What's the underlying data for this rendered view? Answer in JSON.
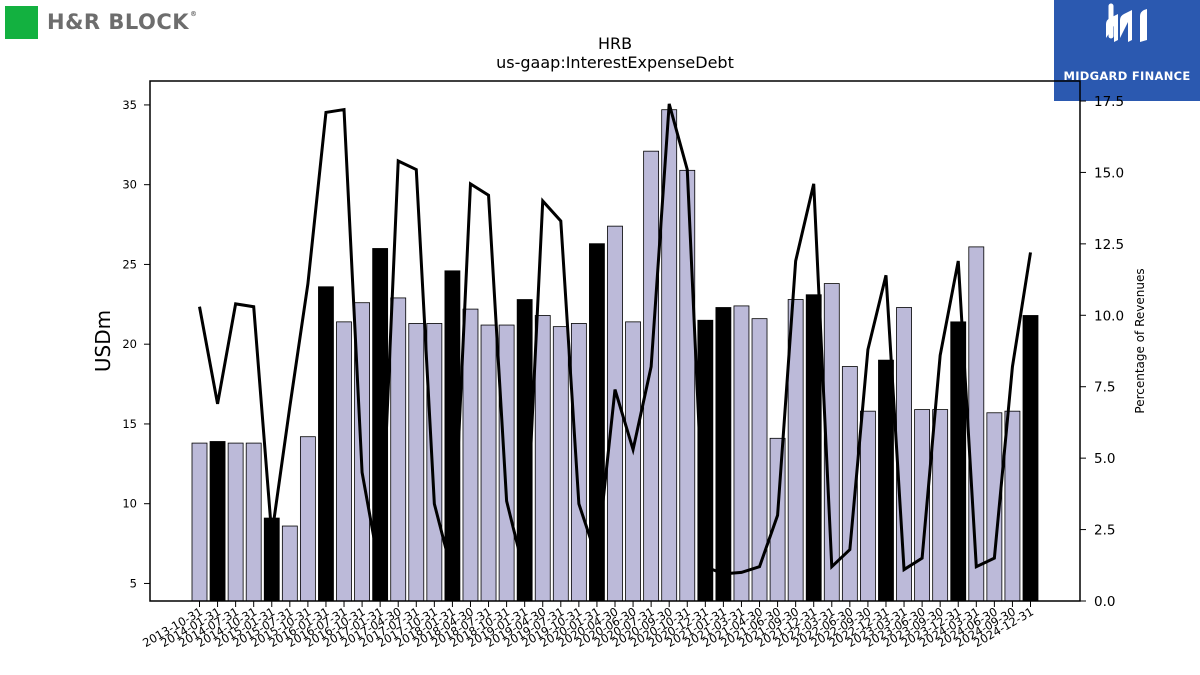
{
  "brand": {
    "name": "H&R BLOCK",
    "trademark": "®",
    "color": "#13b140"
  },
  "watermark": {
    "name": "MIDGARD FINANCE",
    "bg_color": "#2b59b0"
  },
  "chart_data": {
    "type": "bar",
    "title": "HRB",
    "subtitle": "us-gaap:InterestExpenseDebt",
    "ylabel": "USDm",
    "y2label": "Percentage of Revenues",
    "ylim": [
      3.9,
      36.5
    ],
    "y2lim": [
      0,
      18.2
    ],
    "yticks": [
      5,
      10,
      15,
      20,
      25,
      30,
      35
    ],
    "y2ticks": [
      0.0,
      2.5,
      5.0,
      7.5,
      10.0,
      12.5,
      15.0,
      17.5
    ],
    "categories": [
      "2013-10-31",
      "2014-01-31",
      "2014-07-31",
      "2014-10-31",
      "2015-01-31",
      "2015-07-31",
      "2015-10-31",
      "2016-01-31",
      "2016-07-31",
      "2016-10-31",
      "2017-01-31",
      "2017-04-30",
      "2017-07-31",
      "2017-10-31",
      "2018-01-31",
      "2018-04-30",
      "2018-07-31",
      "2018-10-31",
      "2019-01-31",
      "2019-04-30",
      "2019-07-31",
      "2019-10-31",
      "2020-01-31",
      "2020-04-30",
      "2020-06-30",
      "2020-07-31",
      "2020-09-30",
      "2020-10-31",
      "2020-12-31",
      "2021-01-31",
      "2021-03-31",
      "2021-04-30",
      "2021-06-30",
      "2021-09-30",
      "2021-12-31",
      "2022-03-31",
      "2022-06-30",
      "2022-09-30",
      "2022-12-31",
      "2023-03-31",
      "2023-06-30",
      "2023-09-30",
      "2023-12-31",
      "2024-03-31",
      "2024-06-30",
      "2024-09-30",
      "2024-12-31"
    ],
    "series": [
      {
        "name": "",
        "kind": "bar",
        "axis": "left",
        "values": [
          13.8,
          13.9,
          13.8,
          13.8,
          9.1,
          8.6,
          14.2,
          23.6,
          21.4,
          22.6,
          26.0,
          22.9,
          21.3,
          21.3,
          24.6,
          22.2,
          21.2,
          21.2,
          22.8,
          21.8,
          21.1,
          21.3,
          26.3,
          27.4,
          21.4,
          32.1,
          34.7,
          30.9,
          21.5,
          22.3,
          22.4,
          21.6,
          14.1,
          22.8,
          23.1,
          23.8,
          18.6,
          15.8,
          19.0,
          22.3,
          15.9,
          15.9,
          21.4,
          26.1,
          15.7,
          15.8,
          21.8
        ],
        "highlight": [
          false,
          true,
          false,
          false,
          true,
          false,
          false,
          true,
          false,
          false,
          true,
          false,
          false,
          false,
          true,
          false,
          false,
          false,
          true,
          false,
          false,
          false,
          true,
          false,
          false,
          false,
          false,
          false,
          true,
          true,
          false,
          false,
          false,
          false,
          true,
          false,
          false,
          false,
          true,
          false,
          false,
          false,
          true,
          false,
          false,
          false,
          true
        ],
        "color": "#bcbad9",
        "highlight_color": "#000000"
      },
      {
        "name": "",
        "kind": "line",
        "axis": "right",
        "values": [
          10.3,
          6.9,
          10.4,
          10.3,
          2.3,
          6.8,
          11.1,
          17.1,
          17.2,
          4.5,
          1.0,
          15.4,
          15.1,
          3.4,
          0.95,
          14.6,
          14.2,
          3.5,
          0.95,
          14.0,
          13.3,
          3.4,
          1.5,
          7.4,
          5.3,
          8.2,
          17.4,
          15.1,
          1.2,
          0.95,
          1.0,
          1.2,
          3.0,
          11.9,
          14.6,
          1.2,
          1.8,
          8.8,
          11.4,
          1.1,
          1.5,
          8.6,
          11.9,
          1.2,
          1.5,
          8.2,
          12.2
        ],
        "color": "#000000"
      }
    ],
    "grid": false,
    "legend": "none"
  }
}
